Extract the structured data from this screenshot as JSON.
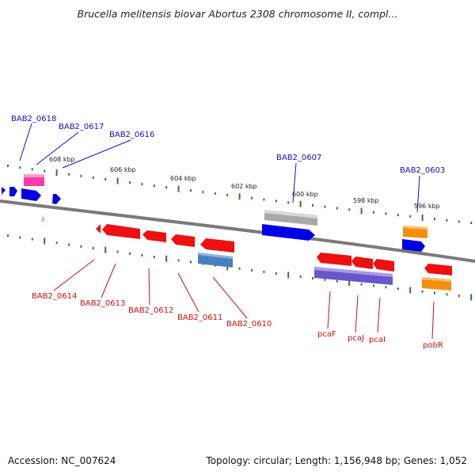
{
  "title": "Brucella melitensis biovar Abortus 2308 chromosome II, compl...",
  "footer": {
    "accession": "Accession: NC_007624",
    "summary": "Topology: circular; Length: 1,156,948 bp; Genes: 1,052"
  },
  "colors": {
    "backbone": "#808080",
    "tick": "#2a7d2a",
    "top_label": "#1010c0",
    "bottom_label": "#cc1010"
  },
  "kbp_labels": [
    "608 kbp",
    "606 kbp",
    "604 kbp",
    "602 kbp",
    "600 kbp",
    "598 kbp",
    "596 kbp"
  ],
  "top_gene_labels": [
    "BAB2_0618",
    "BAB2_0617",
    "BAB2_0616",
    "BAB2_0607",
    "BAB2_0603"
  ],
  "bottom_gene_labels": [
    "BAB2_0614",
    "BAB2_0613",
    "BAB2_0612",
    "BAB2_0611",
    "BAB2_0610",
    "pcaF",
    "pcaJ",
    "pcaI",
    "pobR"
  ]
}
